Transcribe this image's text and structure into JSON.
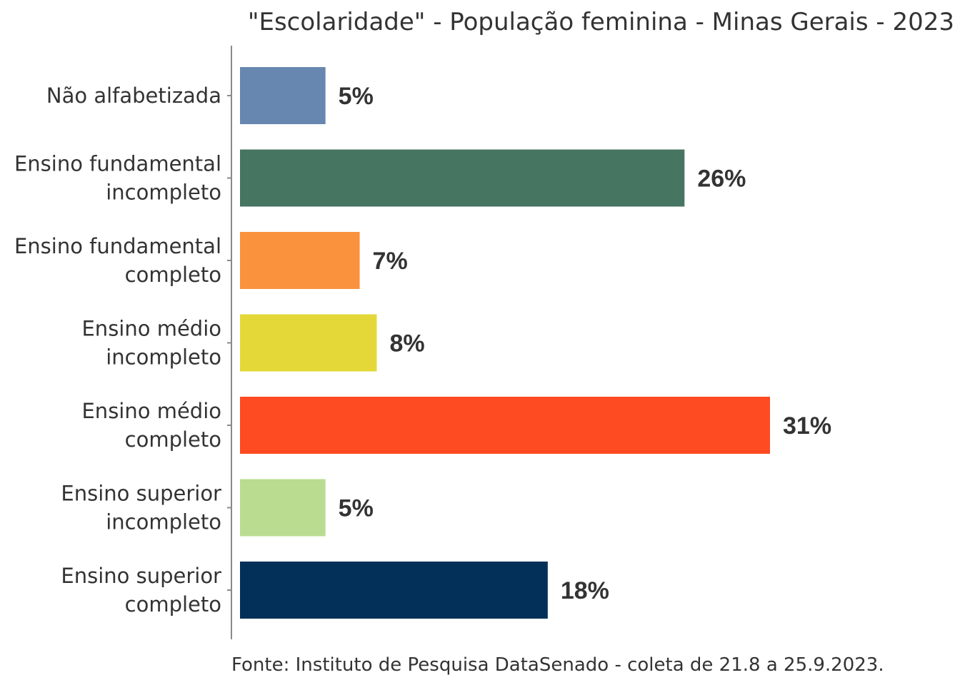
{
  "chart_data": {
    "type": "bar",
    "orientation": "horizontal",
    "title": "\"Escolaridade\" - População feminina - Minas Gerais - 2023",
    "categories": [
      [
        "Não alfabetizada"
      ],
      [
        "Ensino fundamental",
        "incompleto"
      ],
      [
        "Ensino fundamental",
        "completo"
      ],
      [
        "Ensino médio",
        "incompleto"
      ],
      [
        "Ensino médio",
        "completo"
      ],
      [
        "Ensino superior",
        "incompleto"
      ],
      [
        "Ensino superior",
        "completo"
      ]
    ],
    "values": [
      5,
      26,
      7,
      8,
      31,
      5,
      18
    ],
    "value_labels": [
      "5%",
      "26%",
      "7%",
      "8%",
      "31%",
      "5%",
      "18%"
    ],
    "colors": [
      "#6787b0",
      "#467562",
      "#fa923d",
      "#e4d838",
      "#ff4b22",
      "#b9dc91",
      "#023058"
    ],
    "unit": "%",
    "xlim": [
      0,
      31
    ],
    "xlabel": "",
    "ylabel": "",
    "grid": false,
    "legend": "none",
    "source": "Fonte: Instituto de Pesquisa DataSenado - coleta de 21.8 a 25.9.2023."
  }
}
